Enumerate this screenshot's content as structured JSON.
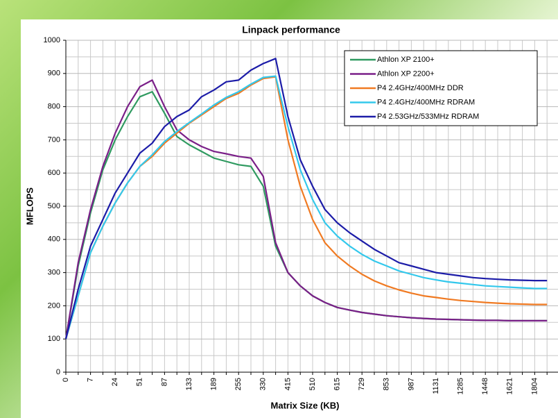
{
  "chart_data": {
    "type": "line",
    "title": "Linpack performance",
    "x_label": "Matrix Size (KB)",
    "y_label": "MFLOPS",
    "categories": [
      "0",
      null,
      "7",
      null,
      "24",
      null,
      "51",
      null,
      "87",
      null,
      "133",
      null,
      "189",
      null,
      "255",
      null,
      "330",
      null,
      "415",
      null,
      "510",
      null,
      "615",
      null,
      "729",
      null,
      "853",
      null,
      "987",
      null,
      "1131",
      null,
      "1285",
      null,
      "1448",
      null,
      "1621",
      null,
      "1804",
      null
    ],
    "ylim": [
      0,
      1000
    ],
    "yticks": [
      0,
      100,
      200,
      300,
      400,
      500,
      600,
      700,
      800,
      900,
      1000
    ],
    "grid": true,
    "legend": "upper right",
    "series": [
      {
        "name": "Athlon XP 2100+",
        "color": "#2f9a60",
        "values": [
          100,
          320,
          480,
          610,
          700,
          770,
          830,
          845,
          780,
          710,
          685,
          665,
          645,
          635,
          625,
          620,
          560,
          380,
          300,
          260,
          230,
          210,
          195,
          187,
          180,
          175,
          170,
          167,
          164,
          162,
          160,
          159,
          158,
          157,
          156,
          156,
          155,
          155,
          155,
          155
        ]
      },
      {
        "name": "Athlon XP 2200+",
        "color": "#7a1f88",
        "values": [
          100,
          330,
          490,
          620,
          720,
          800,
          860,
          880,
          800,
          730,
          700,
          680,
          665,
          658,
          650,
          645,
          590,
          390,
          300,
          260,
          230,
          210,
          195,
          187,
          180,
          175,
          170,
          167,
          164,
          162,
          160,
          159,
          158,
          157,
          156,
          156,
          155,
          155,
          155,
          155
        ]
      },
      {
        "name": "P4 2.4GHz/400MHz DDR",
        "color": "#f07a22",
        "values": [
          100,
          230,
          360,
          440,
          510,
          570,
          620,
          650,
          690,
          720,
          750,
          775,
          800,
          825,
          840,
          865,
          885,
          890,
          700,
          560,
          460,
          390,
          350,
          320,
          295,
          275,
          260,
          248,
          238,
          230,
          225,
          220,
          216,
          213,
          210,
          208,
          206,
          205,
          204,
          204
        ]
      },
      {
        "name": "P4 2.4GHz/400MHz RDRAM",
        "color": "#33c8ec",
        "values": [
          100,
          230,
          360,
          440,
          510,
          570,
          620,
          655,
          695,
          725,
          752,
          778,
          805,
          828,
          845,
          868,
          888,
          892,
          740,
          610,
          520,
          450,
          410,
          380,
          355,
          335,
          320,
          305,
          295,
          285,
          278,
          272,
          268,
          264,
          260,
          258,
          256,
          254,
          252,
          252
        ]
      },
      {
        "name": "P4 2.53GHz/533MHz RDRAM",
        "color": "#1c1ca8",
        "values": [
          100,
          250,
          380,
          460,
          540,
          600,
          660,
          690,
          740,
          770,
          790,
          830,
          850,
          875,
          880,
          910,
          930,
          945,
          770,
          640,
          560,
          490,
          450,
          420,
          395,
          370,
          350,
          330,
          320,
          310,
          300,
          295,
          290,
          285,
          282,
          280,
          278,
          277,
          276,
          276
        ]
      }
    ]
  }
}
